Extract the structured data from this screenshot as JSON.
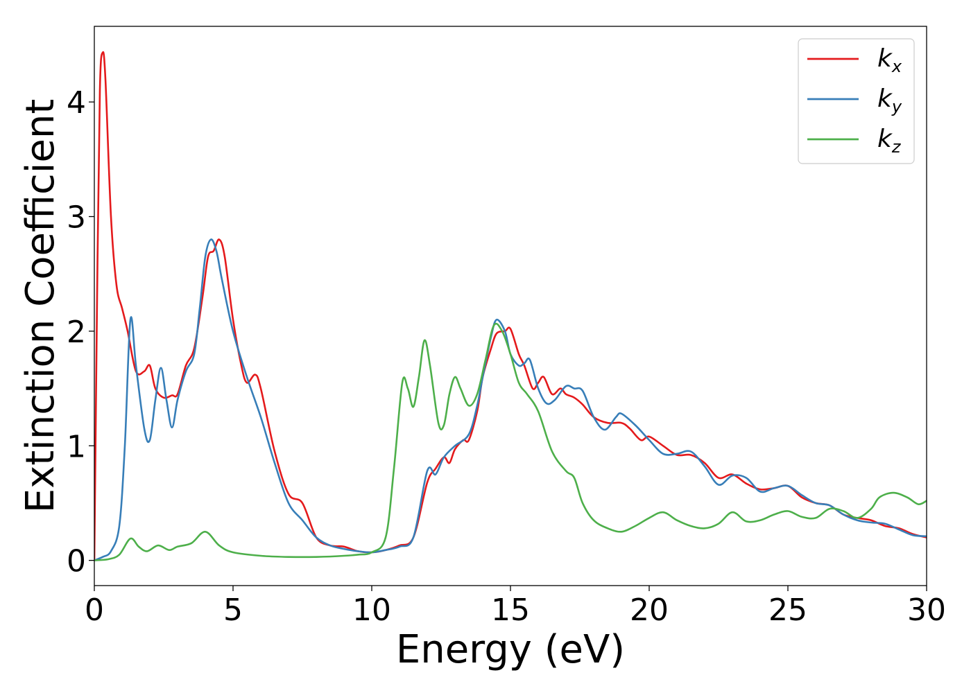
{
  "chart_data": {
    "type": "line",
    "xlabel": "Energy (eV)",
    "ylabel": "Extinction Coefficient",
    "xlim": [
      0,
      30
    ],
    "ylim": [
      -0.22,
      4.66
    ],
    "x_ticks": [
      0,
      5,
      10,
      15,
      20,
      25,
      30
    ],
    "x_tick_labels": [
      "0",
      "5",
      "10",
      "15",
      "20",
      "25",
      "30"
    ],
    "y_ticks": [
      0,
      1,
      2,
      3,
      4
    ],
    "y_tick_labels": [
      "0",
      "1",
      "2",
      "3",
      "4"
    ],
    "grid": false,
    "legend_position": "top-right",
    "legend": [
      {
        "base": "k",
        "sub": "x",
        "color": "#e41a1c"
      },
      {
        "base": "k",
        "sub": "y",
        "color": "#377eb8"
      },
      {
        "base": "k",
        "sub": "z",
        "color": "#4daf4a"
      }
    ],
    "series": [
      {
        "name": "kx",
        "color": "#e41a1c",
        "points": [
          [
            0,
            0
          ],
          [
            0.1,
            2.3
          ],
          [
            0.2,
            4.1
          ],
          [
            0.3,
            4.43
          ],
          [
            0.4,
            4.2
          ],
          [
            0.6,
            3.0
          ],
          [
            0.8,
            2.4
          ],
          [
            1.0,
            2.2
          ],
          [
            1.2,
            2.0
          ],
          [
            1.5,
            1.65
          ],
          [
            1.8,
            1.65
          ],
          [
            2.0,
            1.7
          ],
          [
            2.2,
            1.5
          ],
          [
            2.5,
            1.42
          ],
          [
            2.8,
            1.44
          ],
          [
            3.0,
            1.45
          ],
          [
            3.3,
            1.7
          ],
          [
            3.6,
            1.85
          ],
          [
            3.9,
            2.3
          ],
          [
            4.1,
            2.65
          ],
          [
            4.3,
            2.7
          ],
          [
            4.5,
            2.8
          ],
          [
            4.7,
            2.65
          ],
          [
            5.0,
            2.1
          ],
          [
            5.3,
            1.7
          ],
          [
            5.5,
            1.55
          ],
          [
            5.8,
            1.62
          ],
          [
            6.0,
            1.5
          ],
          [
            6.5,
            0.95
          ],
          [
            7.0,
            0.58
          ],
          [
            7.5,
            0.5
          ],
          [
            8.0,
            0.2
          ],
          [
            8.5,
            0.13
          ],
          [
            9.0,
            0.12
          ],
          [
            9.5,
            0.08
          ],
          [
            10,
            0.07
          ],
          [
            10.5,
            0.09
          ],
          [
            11.0,
            0.13
          ],
          [
            11.5,
            0.2
          ],
          [
            12.0,
            0.68
          ],
          [
            12.3,
            0.8
          ],
          [
            12.6,
            0.9
          ],
          [
            12.8,
            0.85
          ],
          [
            13.0,
            0.97
          ],
          [
            13.3,
            1.05
          ],
          [
            13.5,
            1.05
          ],
          [
            13.8,
            1.3
          ],
          [
            14.0,
            1.6
          ],
          [
            14.3,
            1.85
          ],
          [
            14.5,
            1.98
          ],
          [
            14.8,
            2.0
          ],
          [
            15.0,
            2.02
          ],
          [
            15.3,
            1.8
          ],
          [
            15.5,
            1.7
          ],
          [
            15.8,
            1.5
          ],
          [
            16.0,
            1.55
          ],
          [
            16.2,
            1.6
          ],
          [
            16.5,
            1.45
          ],
          [
            16.8,
            1.5
          ],
          [
            17.0,
            1.45
          ],
          [
            17.3,
            1.42
          ],
          [
            17.6,
            1.36
          ],
          [
            18.0,
            1.25
          ],
          [
            18.5,
            1.2
          ],
          [
            19.0,
            1.2
          ],
          [
            19.3,
            1.15
          ],
          [
            19.7,
            1.05
          ],
          [
            20.0,
            1.08
          ],
          [
            20.5,
            1.0
          ],
          [
            21.0,
            0.92
          ],
          [
            21.5,
            0.92
          ],
          [
            22.0,
            0.85
          ],
          [
            22.5,
            0.72
          ],
          [
            23.0,
            0.75
          ],
          [
            23.5,
            0.67
          ],
          [
            24.0,
            0.62
          ],
          [
            24.5,
            0.63
          ],
          [
            25.0,
            0.65
          ],
          [
            25.5,
            0.55
          ],
          [
            26.0,
            0.5
          ],
          [
            26.5,
            0.48
          ],
          [
            27.0,
            0.4
          ],
          [
            27.5,
            0.37
          ],
          [
            28.0,
            0.35
          ],
          [
            28.5,
            0.3
          ],
          [
            29.0,
            0.28
          ],
          [
            29.5,
            0.23
          ],
          [
            30.0,
            0.2
          ]
        ]
      },
      {
        "name": "ky",
        "color": "#377eb8",
        "points": [
          [
            0,
            0
          ],
          [
            0.3,
            0.03
          ],
          [
            0.6,
            0.08
          ],
          [
            0.9,
            0.3
          ],
          [
            1.1,
            1.0
          ],
          [
            1.3,
            2.1
          ],
          [
            1.5,
            1.7
          ],
          [
            1.8,
            1.15
          ],
          [
            2.0,
            1.05
          ],
          [
            2.2,
            1.4
          ],
          [
            2.4,
            1.68
          ],
          [
            2.6,
            1.4
          ],
          [
            2.8,
            1.16
          ],
          [
            3.0,
            1.4
          ],
          [
            3.3,
            1.65
          ],
          [
            3.6,
            1.8
          ],
          [
            3.8,
            2.2
          ],
          [
            4.0,
            2.65
          ],
          [
            4.2,
            2.8
          ],
          [
            4.4,
            2.7
          ],
          [
            4.6,
            2.45
          ],
          [
            5.0,
            2.0
          ],
          [
            5.5,
            1.6
          ],
          [
            6.0,
            1.25
          ],
          [
            6.5,
            0.85
          ],
          [
            7.0,
            0.5
          ],
          [
            7.5,
            0.35
          ],
          [
            8.0,
            0.2
          ],
          [
            8.5,
            0.13
          ],
          [
            9.0,
            0.1
          ],
          [
            9.5,
            0.08
          ],
          [
            10,
            0.07
          ],
          [
            10.5,
            0.09
          ],
          [
            11.0,
            0.12
          ],
          [
            11.5,
            0.2
          ],
          [
            12.0,
            0.78
          ],
          [
            12.3,
            0.75
          ],
          [
            12.6,
            0.9
          ],
          [
            13.0,
            1.0
          ],
          [
            13.5,
            1.1
          ],
          [
            13.8,
            1.35
          ],
          [
            14.0,
            1.6
          ],
          [
            14.3,
            1.95
          ],
          [
            14.5,
            2.1
          ],
          [
            14.8,
            2.0
          ],
          [
            15.0,
            1.8
          ],
          [
            15.3,
            1.7
          ],
          [
            15.5,
            1.72
          ],
          [
            15.7,
            1.75
          ],
          [
            16.0,
            1.5
          ],
          [
            16.3,
            1.37
          ],
          [
            16.6,
            1.4
          ],
          [
            17.0,
            1.52
          ],
          [
            17.3,
            1.5
          ],
          [
            17.6,
            1.48
          ],
          [
            18.0,
            1.25
          ],
          [
            18.4,
            1.14
          ],
          [
            18.8,
            1.25
          ],
          [
            19.0,
            1.28
          ],
          [
            19.5,
            1.18
          ],
          [
            20.0,
            1.05
          ],
          [
            20.5,
            0.93
          ],
          [
            21.0,
            0.93
          ],
          [
            21.5,
            0.95
          ],
          [
            22.0,
            0.82
          ],
          [
            22.5,
            0.66
          ],
          [
            23.0,
            0.74
          ],
          [
            23.5,
            0.72
          ],
          [
            24.0,
            0.6
          ],
          [
            24.5,
            0.63
          ],
          [
            25.0,
            0.65
          ],
          [
            25.5,
            0.57
          ],
          [
            26.0,
            0.5
          ],
          [
            26.5,
            0.48
          ],
          [
            27.0,
            0.4
          ],
          [
            27.5,
            0.35
          ],
          [
            28.0,
            0.33
          ],
          [
            28.5,
            0.32
          ],
          [
            29.0,
            0.27
          ],
          [
            29.5,
            0.22
          ],
          [
            30.0,
            0.21
          ]
        ]
      },
      {
        "name": "kz",
        "color": "#4daf4a",
        "points": [
          [
            0,
            0
          ],
          [
            0.5,
            0.01
          ],
          [
            0.9,
            0.05
          ],
          [
            1.3,
            0.19
          ],
          [
            1.6,
            0.12
          ],
          [
            1.9,
            0.08
          ],
          [
            2.3,
            0.13
          ],
          [
            2.7,
            0.09
          ],
          [
            3.0,
            0.12
          ],
          [
            3.5,
            0.15
          ],
          [
            4.0,
            0.25
          ],
          [
            4.5,
            0.13
          ],
          [
            5.0,
            0.07
          ],
          [
            6.0,
            0.04
          ],
          [
            7.0,
            0.03
          ],
          [
            8.0,
            0.03
          ],
          [
            9.0,
            0.04
          ],
          [
            9.5,
            0.05
          ],
          [
            10.0,
            0.07
          ],
          [
            10.5,
            0.2
          ],
          [
            10.8,
            0.8
          ],
          [
            11.1,
            1.55
          ],
          [
            11.3,
            1.5
          ],
          [
            11.5,
            1.34
          ],
          [
            11.7,
            1.6
          ],
          [
            11.9,
            1.92
          ],
          [
            12.1,
            1.7
          ],
          [
            12.4,
            1.2
          ],
          [
            12.6,
            1.18
          ],
          [
            12.8,
            1.45
          ],
          [
            13.0,
            1.6
          ],
          [
            13.2,
            1.5
          ],
          [
            13.5,
            1.35
          ],
          [
            13.8,
            1.45
          ],
          [
            14.1,
            1.75
          ],
          [
            14.4,
            2.05
          ],
          [
            14.7,
            2.0
          ],
          [
            15.0,
            1.8
          ],
          [
            15.3,
            1.55
          ],
          [
            15.6,
            1.45
          ],
          [
            16.0,
            1.3
          ],
          [
            16.5,
            0.95
          ],
          [
            17.0,
            0.78
          ],
          [
            17.3,
            0.72
          ],
          [
            17.6,
            0.5
          ],
          [
            18.0,
            0.35
          ],
          [
            18.5,
            0.28
          ],
          [
            19.0,
            0.25
          ],
          [
            19.5,
            0.3
          ],
          [
            20.0,
            0.37
          ],
          [
            20.5,
            0.42
          ],
          [
            21.0,
            0.35
          ],
          [
            21.5,
            0.3
          ],
          [
            22.0,
            0.28
          ],
          [
            22.5,
            0.32
          ],
          [
            23.0,
            0.42
          ],
          [
            23.5,
            0.34
          ],
          [
            24.0,
            0.35
          ],
          [
            24.5,
            0.4
          ],
          [
            25.0,
            0.43
          ],
          [
            25.5,
            0.38
          ],
          [
            26.0,
            0.37
          ],
          [
            26.5,
            0.45
          ],
          [
            27.0,
            0.43
          ],
          [
            27.5,
            0.37
          ],
          [
            28.0,
            0.45
          ],
          [
            28.3,
            0.55
          ],
          [
            28.8,
            0.59
          ],
          [
            29.3,
            0.55
          ],
          [
            29.7,
            0.49
          ],
          [
            30.0,
            0.52
          ]
        ]
      }
    ]
  }
}
